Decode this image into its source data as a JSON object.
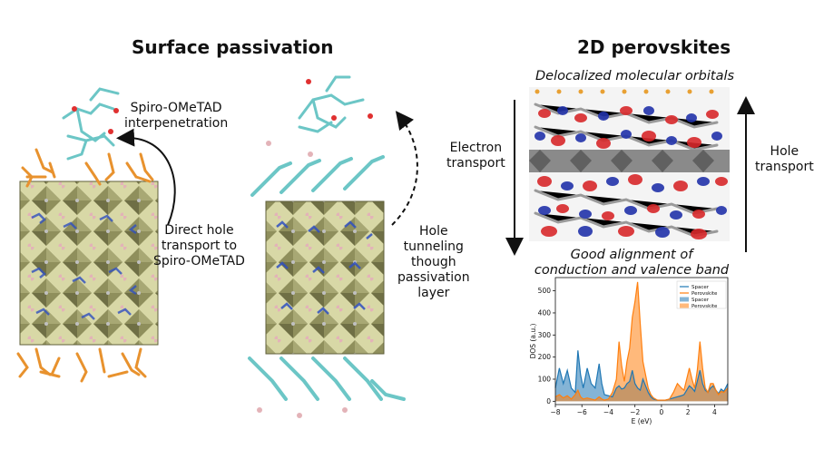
{
  "titles": {
    "left": "Surface passivation",
    "right": "2D perovskites"
  },
  "left_panel": {
    "spiro_label": "Spiro-OMeTAD\ninterpenetration",
    "direct_label": "Direct hole\ntransport to\nSpiro-OMeTAD",
    "tunnel_label": "Hole\ntunneling\nthough\npassivation\nlayer"
  },
  "right_panel": {
    "orbitals_caption": "Delocalized molecular orbitals",
    "electron_label": "Electron\ntransport",
    "hole_label": "Hole\ntransport",
    "alignment_caption_1": "Good alignment of",
    "alignment_caption_2": "conduction and valence band"
  },
  "colors": {
    "octahedra": "#b5b57a",
    "ligand_orange": "#e8922e",
    "ligand_cyan": "#6cc6c6",
    "spacer": "#1f77b4",
    "perovskite": "#ff7f0e"
  },
  "chart_data": {
    "type": "area",
    "xlabel": "E (eV)",
    "ylabel": "DOS (a.u.)",
    "xlim": [
      -8,
      5
    ],
    "ylim": [
      -15,
      560
    ],
    "xticks": [
      -8,
      -6,
      -4,
      -2,
      0,
      2,
      4
    ],
    "yticks": [
      0,
      100,
      200,
      300,
      400,
      500
    ],
    "legend_position": "top-right",
    "legend": [
      "Spacer",
      "Perovskite",
      "Spacer",
      "Perovskite"
    ],
    "x": [
      -8,
      -7.7,
      -7.4,
      -7.1,
      -6.8,
      -6.5,
      -6.3,
      -6.1,
      -5.9,
      -5.6,
      -5.3,
      -5,
      -4.7,
      -4.5,
      -4.3,
      -4,
      -3.7,
      -3.4,
      -3.2,
      -3,
      -2.8,
      -2.6,
      -2.4,
      -2.2,
      -2,
      -1.8,
      -1.6,
      -1.4,
      -1.2,
      -1,
      -0.8,
      -0.6,
      -0.3,
      0,
      0.3,
      0.6,
      0.9,
      1.2,
      1.5,
      1.7,
      1.9,
      2.1,
      2.3,
      2.5,
      2.7,
      2.9,
      3.1,
      3.3,
      3.5,
      3.7,
      3.9,
      4.1,
      4.3,
      4.5,
      4.7,
      5
    ],
    "series": [
      {
        "name": "Spacer",
        "values": [
          60,
          150,
          80,
          140,
          60,
          40,
          230,
          120,
          60,
          150,
          80,
          60,
          170,
          80,
          30,
          25,
          20,
          60,
          70,
          55,
          60,
          80,
          90,
          140,
          80,
          60,
          50,
          100,
          70,
          40,
          20,
          10,
          5,
          5,
          5,
          10,
          15,
          20,
          25,
          30,
          50,
          70,
          60,
          45,
          90,
          140,
          80,
          50,
          40,
          60,
          70,
          50,
          35,
          55,
          45,
          80
        ]
      },
      {
        "name": "Perovskite",
        "values": [
          20,
          30,
          15,
          25,
          10,
          30,
          50,
          20,
          10,
          15,
          10,
          5,
          20,
          10,
          5,
          10,
          40,
          100,
          270,
          160,
          90,
          180,
          240,
          380,
          450,
          540,
          350,
          180,
          120,
          60,
          30,
          15,
          5,
          5,
          5,
          10,
          40,
          80,
          60,
          50,
          100,
          150,
          100,
          60,
          140,
          270,
          150,
          60,
          40,
          80,
          80,
          50,
          30,
          45,
          40,
          60
        ]
      }
    ]
  }
}
